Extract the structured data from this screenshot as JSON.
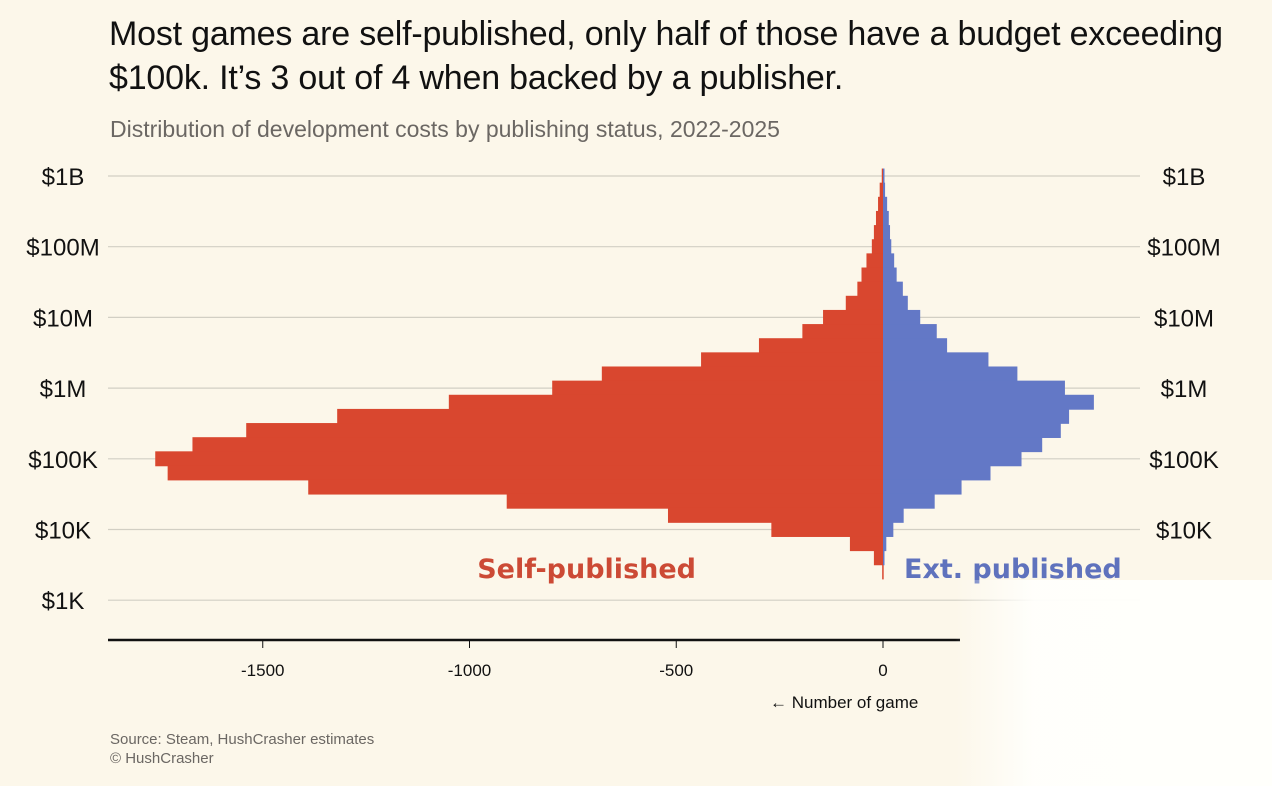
{
  "header": {
    "title": "Most games are self-published, only half of those have a budget exceeding $100k. It’s 3 out of 4 when backed by a publisher.",
    "subtitle": "Distribution of development costs by publishing status, 2022-2025"
  },
  "footer": {
    "source": "Source: Steam, HushCrasher estimates",
    "copyright": "© HushCrasher"
  },
  "colors": {
    "background": "#fcf7ea",
    "self_published": "#d9472f",
    "ext_published": "#6378c6",
    "grid": "#d2cfc4"
  },
  "chart_data": {
    "type": "bar",
    "orientation": "horizontal-diverging",
    "title": "Most games are self-published, only half of those have a budget exceeding $100k. It’s 3 out of 4 when backed by a publisher.",
    "subtitle": "Distribution of development costs by publishing status, 2022-2025",
    "xlabel": "← Number of game",
    "ylabel": "",
    "y_scale": "log10",
    "ylim_log10": [
      2.85,
      9.1
    ],
    "xlim": [
      -1850,
      500
    ],
    "x_ticks": [
      {
        "value": -1500,
        "label": "-1500"
      },
      {
        "value": -1000,
        "label": "-1000"
      },
      {
        "value": -500,
        "label": "-500"
      },
      {
        "value": 0,
        "label": "0"
      }
    ],
    "y_ticks": [
      {
        "log10": 9,
        "label": "$1B"
      },
      {
        "log10": 8,
        "label": "$100M"
      },
      {
        "log10": 7,
        "label": "$10M"
      },
      {
        "log10": 6,
        "label": "$1M"
      },
      {
        "log10": 5,
        "label": "$100K"
      },
      {
        "log10": 4,
        "label": "$10K"
      },
      {
        "log10": 3,
        "label": "$1K"
      }
    ],
    "grid": true,
    "legend": "inline-labels",
    "bin_width_log10": 0.2,
    "bin_start_log10": [
      9.0,
      8.8,
      8.6,
      8.4,
      8.2,
      8.0,
      7.8,
      7.6,
      7.4,
      7.2,
      7.0,
      6.8,
      6.6,
      6.4,
      6.2,
      6.0,
      5.8,
      5.6,
      5.4,
      5.2,
      5.0,
      4.8,
      4.6,
      4.4,
      4.2,
      4.0,
      3.8,
      3.6,
      3.4,
      3.2,
      3.0
    ],
    "series": [
      {
        "name": "Self-published",
        "label": "Self-published",
        "sign": -1,
        "values": [
          3,
          8,
          12,
          17,
          22,
          27,
          40,
          52,
          62,
          90,
          145,
          195,
          300,
          440,
          680,
          800,
          1050,
          1320,
          1540,
          1670,
          1760,
          1730,
          1390,
          910,
          520,
          270,
          80,
          22,
          2,
          0,
          0
        ]
      },
      {
        "name": "Ext. published",
        "label": "Ext. published",
        "sign": 1,
        "values": [
          2,
          5,
          10,
          14,
          17,
          20,
          27,
          33,
          48,
          60,
          90,
          130,
          155,
          255,
          325,
          440,
          510,
          450,
          430,
          385,
          335,
          260,
          190,
          125,
          50,
          25,
          8,
          2,
          0,
          0,
          0
        ]
      }
    ]
  }
}
